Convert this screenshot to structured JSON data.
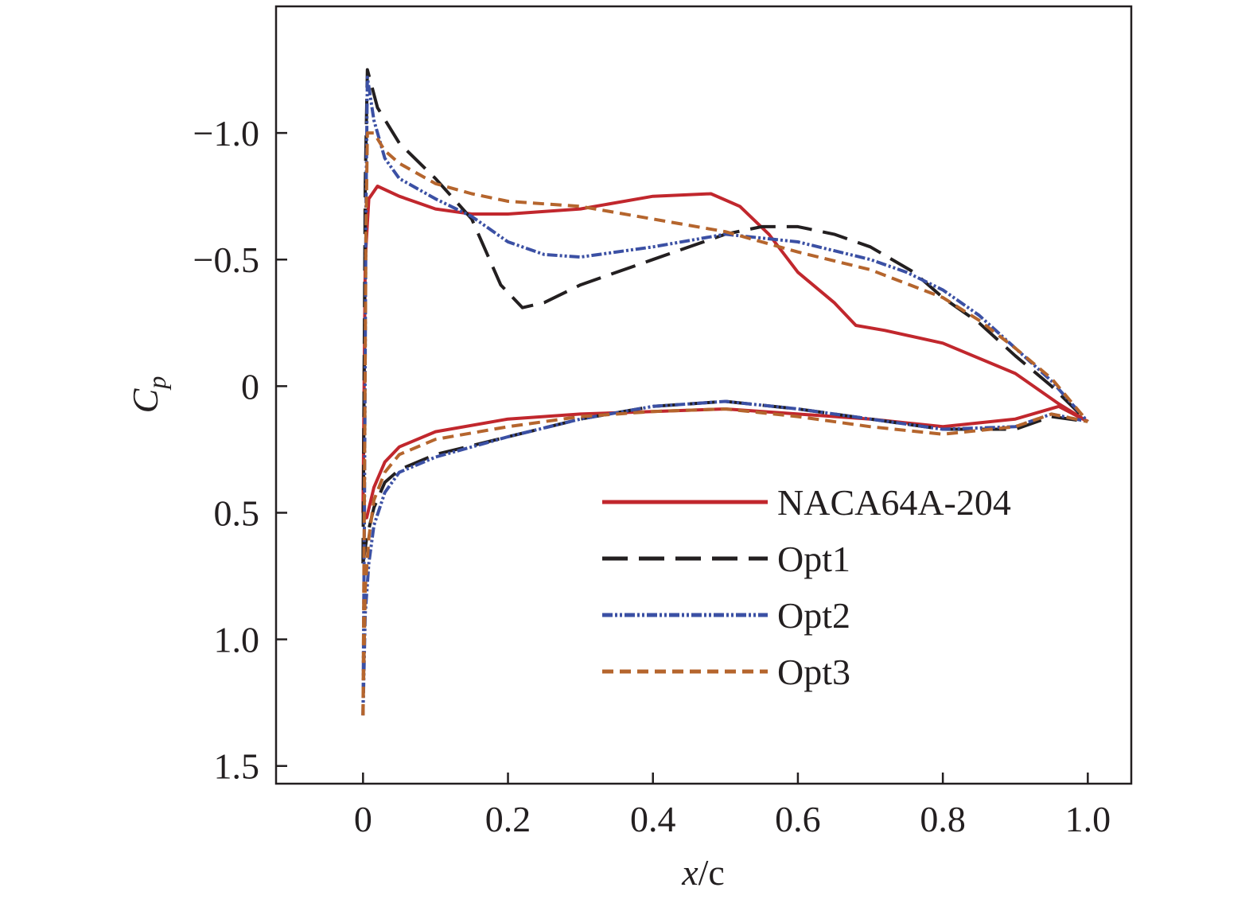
{
  "chart_data": {
    "type": "line",
    "title": "",
    "xlabel": {
      "italic": "x",
      "rest": "/c"
    },
    "ylabel": {
      "main": "C",
      "sub": "p"
    },
    "xlim": [
      -0.12,
      1.06
    ],
    "ylim": [
      1.57,
      -1.5
    ],
    "y_inverted": true,
    "xticks": [
      0,
      0.2,
      0.4,
      0.6,
      0.8,
      1.0
    ],
    "xtick_labels": [
      "0",
      "0.2",
      "0.4",
      "0.6",
      "0.8",
      "1.0"
    ],
    "yticks": [
      -1.0,
      -0.5,
      0,
      0.5,
      1.0,
      1.5
    ],
    "ytick_labels": [
      "−1.0",
      "−0.5",
      "0",
      "0.5",
      "1.0",
      "1.5"
    ],
    "grid": false,
    "legend_position": "bottom-right",
    "series": [
      {
        "name": "NACA64A-204",
        "color": "#c1272d",
        "dash": "solid",
        "upper": [
          [
            0,
            0.5
          ],
          [
            0.003,
            -0.5
          ],
          [
            0.008,
            -0.74
          ],
          [
            0.02,
            -0.79
          ],
          [
            0.05,
            -0.75
          ],
          [
            0.1,
            -0.7
          ],
          [
            0.15,
            -0.68
          ],
          [
            0.2,
            -0.68
          ],
          [
            0.3,
            -0.7
          ],
          [
            0.4,
            -0.75
          ],
          [
            0.48,
            -0.76
          ],
          [
            0.52,
            -0.71
          ],
          [
            0.56,
            -0.6
          ],
          [
            0.6,
            -0.45
          ],
          [
            0.65,
            -0.33
          ],
          [
            0.68,
            -0.24
          ],
          [
            0.72,
            -0.22
          ],
          [
            0.8,
            -0.17
          ],
          [
            0.9,
            -0.05
          ],
          [
            0.96,
            0.07
          ],
          [
            1.0,
            0.14
          ]
        ],
        "lower": [
          [
            0,
            0.5
          ],
          [
            0.005,
            0.52
          ],
          [
            0.015,
            0.4
          ],
          [
            0.03,
            0.3
          ],
          [
            0.05,
            0.24
          ],
          [
            0.1,
            0.18
          ],
          [
            0.2,
            0.13
          ],
          [
            0.3,
            0.11
          ],
          [
            0.4,
            0.1
          ],
          [
            0.5,
            0.09
          ],
          [
            0.6,
            0.11
          ],
          [
            0.7,
            0.13
          ],
          [
            0.8,
            0.16
          ],
          [
            0.9,
            0.13
          ],
          [
            0.96,
            0.08
          ],
          [
            1.0,
            0.14
          ]
        ]
      },
      {
        "name": "Opt1",
        "color": "#231f20",
        "dash": "long-dash",
        "upper": [
          [
            0,
            0.7
          ],
          [
            0.003,
            -0.8
          ],
          [
            0.006,
            -1.25
          ],
          [
            0.02,
            -1.1
          ],
          [
            0.05,
            -0.96
          ],
          [
            0.1,
            -0.82
          ],
          [
            0.15,
            -0.66
          ],
          [
            0.19,
            -0.4
          ],
          [
            0.22,
            -0.31
          ],
          [
            0.25,
            -0.33
          ],
          [
            0.3,
            -0.4
          ],
          [
            0.4,
            -0.5
          ],
          [
            0.5,
            -0.6
          ],
          [
            0.55,
            -0.63
          ],
          [
            0.6,
            -0.63
          ],
          [
            0.65,
            -0.6
          ],
          [
            0.7,
            -0.55
          ],
          [
            0.76,
            -0.45
          ],
          [
            0.8,
            -0.35
          ],
          [
            0.85,
            -0.25
          ],
          [
            0.9,
            -0.12
          ],
          [
            0.95,
            0.0
          ],
          [
            1.0,
            0.14
          ]
        ],
        "lower": [
          [
            0,
            0.7
          ],
          [
            0.005,
            0.6
          ],
          [
            0.015,
            0.48
          ],
          [
            0.03,
            0.38
          ],
          [
            0.05,
            0.33
          ],
          [
            0.1,
            0.27
          ],
          [
            0.2,
            0.2
          ],
          [
            0.3,
            0.13
          ],
          [
            0.4,
            0.08
          ],
          [
            0.5,
            0.06
          ],
          [
            0.6,
            0.09
          ],
          [
            0.7,
            0.13
          ],
          [
            0.8,
            0.17
          ],
          [
            0.9,
            0.17
          ],
          [
            0.95,
            0.12
          ],
          [
            1.0,
            0.14
          ]
        ]
      },
      {
        "name": "Opt2",
        "color": "#3b50a4",
        "dash": "dash-dot-dot",
        "upper": [
          [
            0,
            1.3
          ],
          [
            0.002,
            0.5
          ],
          [
            0.004,
            -0.7
          ],
          [
            0.006,
            -1.22
          ],
          [
            0.015,
            -1.05
          ],
          [
            0.03,
            -0.9
          ],
          [
            0.05,
            -0.82
          ],
          [
            0.1,
            -0.74
          ],
          [
            0.15,
            -0.67
          ],
          [
            0.2,
            -0.57
          ],
          [
            0.25,
            -0.52
          ],
          [
            0.3,
            -0.51
          ],
          [
            0.4,
            -0.55
          ],
          [
            0.5,
            -0.6
          ],
          [
            0.6,
            -0.57
          ],
          [
            0.7,
            -0.5
          ],
          [
            0.75,
            -0.45
          ],
          [
            0.8,
            -0.38
          ],
          [
            0.85,
            -0.28
          ],
          [
            0.9,
            -0.15
          ],
          [
            0.95,
            -0.02
          ],
          [
            1.0,
            0.14
          ]
        ],
        "lower": [
          [
            0,
            1.3
          ],
          [
            0.003,
            0.9
          ],
          [
            0.008,
            0.7
          ],
          [
            0.015,
            0.55
          ],
          [
            0.03,
            0.42
          ],
          [
            0.05,
            0.34
          ],
          [
            0.1,
            0.28
          ],
          [
            0.2,
            0.2
          ],
          [
            0.3,
            0.13
          ],
          [
            0.4,
            0.08
          ],
          [
            0.5,
            0.06
          ],
          [
            0.6,
            0.09
          ],
          [
            0.7,
            0.13
          ],
          [
            0.8,
            0.17
          ],
          [
            0.9,
            0.16
          ],
          [
            0.95,
            0.11
          ],
          [
            1.0,
            0.14
          ]
        ]
      },
      {
        "name": "Opt3",
        "color": "#b5652d",
        "dash": "short-dash",
        "upper": [
          [
            0,
            1.3
          ],
          [
            0.002,
            0.4
          ],
          [
            0.004,
            -0.6
          ],
          [
            0.006,
            -1.0
          ],
          [
            0.015,
            -1.0
          ],
          [
            0.03,
            -0.93
          ],
          [
            0.05,
            -0.88
          ],
          [
            0.1,
            -0.8
          ],
          [
            0.15,
            -0.76
          ],
          [
            0.2,
            -0.73
          ],
          [
            0.3,
            -0.71
          ],
          [
            0.4,
            -0.66
          ],
          [
            0.5,
            -0.61
          ],
          [
            0.55,
            -0.57
          ],
          [
            0.6,
            -0.53
          ],
          [
            0.7,
            -0.46
          ],
          [
            0.8,
            -0.35
          ],
          [
            0.85,
            -0.26
          ],
          [
            0.9,
            -0.15
          ],
          [
            0.95,
            -0.03
          ],
          [
            1.0,
            0.14
          ]
        ],
        "lower": [
          [
            0,
            1.3
          ],
          [
            0.003,
            0.8
          ],
          [
            0.008,
            0.6
          ],
          [
            0.015,
            0.45
          ],
          [
            0.03,
            0.34
          ],
          [
            0.05,
            0.27
          ],
          [
            0.1,
            0.21
          ],
          [
            0.2,
            0.16
          ],
          [
            0.3,
            0.12
          ],
          [
            0.4,
            0.1
          ],
          [
            0.5,
            0.09
          ],
          [
            0.6,
            0.12
          ],
          [
            0.7,
            0.16
          ],
          [
            0.8,
            0.19
          ],
          [
            0.9,
            0.16
          ],
          [
            0.95,
            0.11
          ],
          [
            1.0,
            0.14
          ]
        ]
      }
    ]
  }
}
